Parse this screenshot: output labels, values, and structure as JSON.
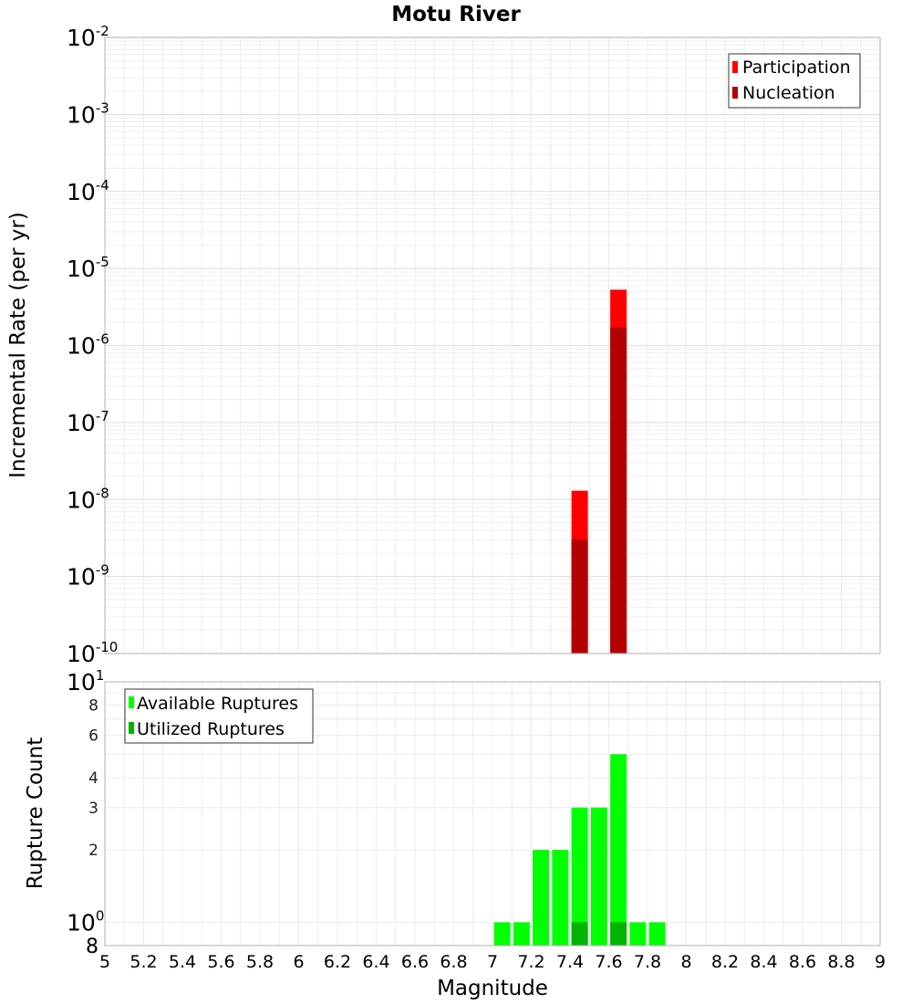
{
  "chart_data": [
    {
      "type": "bar",
      "title": "Motu River",
      "xlabel": "Magnitude",
      "ylabel": "Incremental Rate (per yr)",
      "yscale": "log",
      "xlim": [
        5,
        9
      ],
      "ylim": [
        1e-10,
        0.01
      ],
      "y_tick_labels": [
        {
          "base": "10",
          "exp": "-2"
        },
        {
          "base": "10",
          "exp": "-3"
        },
        {
          "base": "10",
          "exp": "-4"
        },
        {
          "base": "10",
          "exp": "-5"
        },
        {
          "base": "10",
          "exp": "-6"
        },
        {
          "base": "10",
          "exp": "-7"
        },
        {
          "base": "10",
          "exp": "-8"
        },
        {
          "base": "10",
          "exp": "-9"
        },
        {
          "base": "10",
          "exp": "-10"
        }
      ],
      "legend_position": "top-right",
      "grid": true,
      "series": [
        {
          "name": "Participation",
          "color": "#ff0000",
          "points": [
            {
              "x": 7.45,
              "y": 1.3e-08
            },
            {
              "x": 7.65,
              "y": 5.3e-06
            }
          ]
        },
        {
          "name": "Nucleation",
          "color": "#b30000",
          "points": [
            {
              "x": 7.45,
              "y": 3e-09
            },
            {
              "x": 7.65,
              "y": 1.7e-06
            }
          ]
        }
      ]
    },
    {
      "type": "bar",
      "xlabel": "Magnitude",
      "ylabel": "Rupture Count",
      "yscale": "log",
      "xlim": [
        5,
        9
      ],
      "ylim": [
        0.8,
        10
      ],
      "x_tick_labels": [
        "5",
        "5.2",
        "5.4",
        "5.6",
        "5.8",
        "6",
        "6.2",
        "6.4",
        "6.6",
        "6.8",
        "7",
        "7.2",
        "7.4",
        "7.6",
        "7.8",
        "8",
        "8.2",
        "8.4",
        "8.6",
        "8.8",
        "9"
      ],
      "y_tick_labels_major": [
        {
          "value": 10,
          "base": "10",
          "exp": "1"
        },
        {
          "value": 1,
          "base": "10",
          "exp": "0"
        }
      ],
      "y_tick_labels_minor": [
        "8",
        "6",
        "4",
        "3",
        "2"
      ],
      "y_tick_label_bottom": "8",
      "legend_position": "top-left",
      "grid": true,
      "series": [
        {
          "name": "Available Ruptures",
          "color": "#00ff00",
          "points": [
            {
              "x": 7.05,
              "y": 1
            },
            {
              "x": 7.15,
              "y": 1
            },
            {
              "x": 7.25,
              "y": 2
            },
            {
              "x": 7.35,
              "y": 2
            },
            {
              "x": 7.45,
              "y": 3
            },
            {
              "x": 7.55,
              "y": 3
            },
            {
              "x": 7.65,
              "y": 5
            },
            {
              "x": 7.75,
              "y": 1
            },
            {
              "x": 7.85,
              "y": 1
            }
          ]
        },
        {
          "name": "Utilized Ruptures",
          "color": "#00b300",
          "points": [
            {
              "x": 7.45,
              "y": 1
            },
            {
              "x": 7.65,
              "y": 1
            }
          ]
        }
      ]
    }
  ]
}
